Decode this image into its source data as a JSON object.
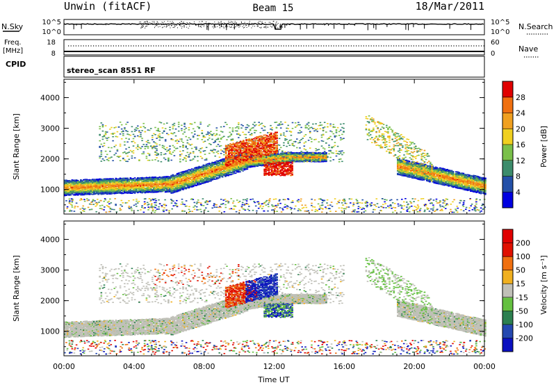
{
  "header": {
    "station": "Unwin (fitACF)",
    "beam": "Beam 15",
    "date": "18/Mar/2011"
  },
  "noise_panel": {
    "left_label": "N.Sky",
    "left_ticks": [
      "10^5",
      "10^0"
    ],
    "right_ticks": [
      "10^5",
      "10^0"
    ],
    "right_label": "N.Search"
  },
  "freq_panel": {
    "left_label_1": "Freq.",
    "left_label_2": "[MHz]",
    "left_ticks": [
      "18",
      "8"
    ],
    "right_ticks": [
      "60",
      "0"
    ],
    "right_label": "Nave"
  },
  "cpid_panel": {
    "label": "CPID",
    "text": "stereo_scan 8551 RF"
  },
  "x_axis": {
    "ticks": [
      "00:00",
      "04:00",
      "08:00",
      "12:00",
      "16:00",
      "20:00",
      "00:00"
    ],
    "label": "Time UT"
  },
  "chart_data": [
    {
      "type": "heatmap",
      "variable": "Power",
      "x_range_hours": [
        0,
        24
      ],
      "ylabel": "Slant Range [km]",
      "y_ticks": [
        "1000",
        "2000",
        "3000",
        "4000"
      ],
      "ylim": [
        200,
        4600
      ],
      "colorbar": {
        "label": "Power [dB]",
        "ticks": [
          "4",
          "8",
          "12",
          "16",
          "20",
          "24",
          "28"
        ],
        "range": [
          0,
          32
        ],
        "colors": [
          "#0000e0",
          "#2450a8",
          "#3c8c6c",
          "#7ac04a",
          "#f0d020",
          "#f0a020",
          "#f07010",
          "#e00000"
        ]
      }
    },
    {
      "type": "heatmap",
      "variable": "Velocity",
      "x_range_hours": [
        0,
        24
      ],
      "ylabel": "Slant Range [km]",
      "y_ticks": [
        "1000",
        "2000",
        "3000",
        "4000"
      ],
      "ylim": [
        200,
        4600
      ],
      "colorbar": {
        "label": "Velocity [m s⁻¹]",
        "ticks": [
          "200",
          "100",
          "50",
          "15",
          "-15",
          "-50",
          "-100",
          "-200"
        ],
        "colors": [
          "#0a10c0",
          "#2448b0",
          "#2c8050",
          "#64c040",
          "#c0c0b8",
          "#f0b020",
          "#f07010",
          "#e01000",
          "#e00000"
        ]
      }
    }
  ]
}
